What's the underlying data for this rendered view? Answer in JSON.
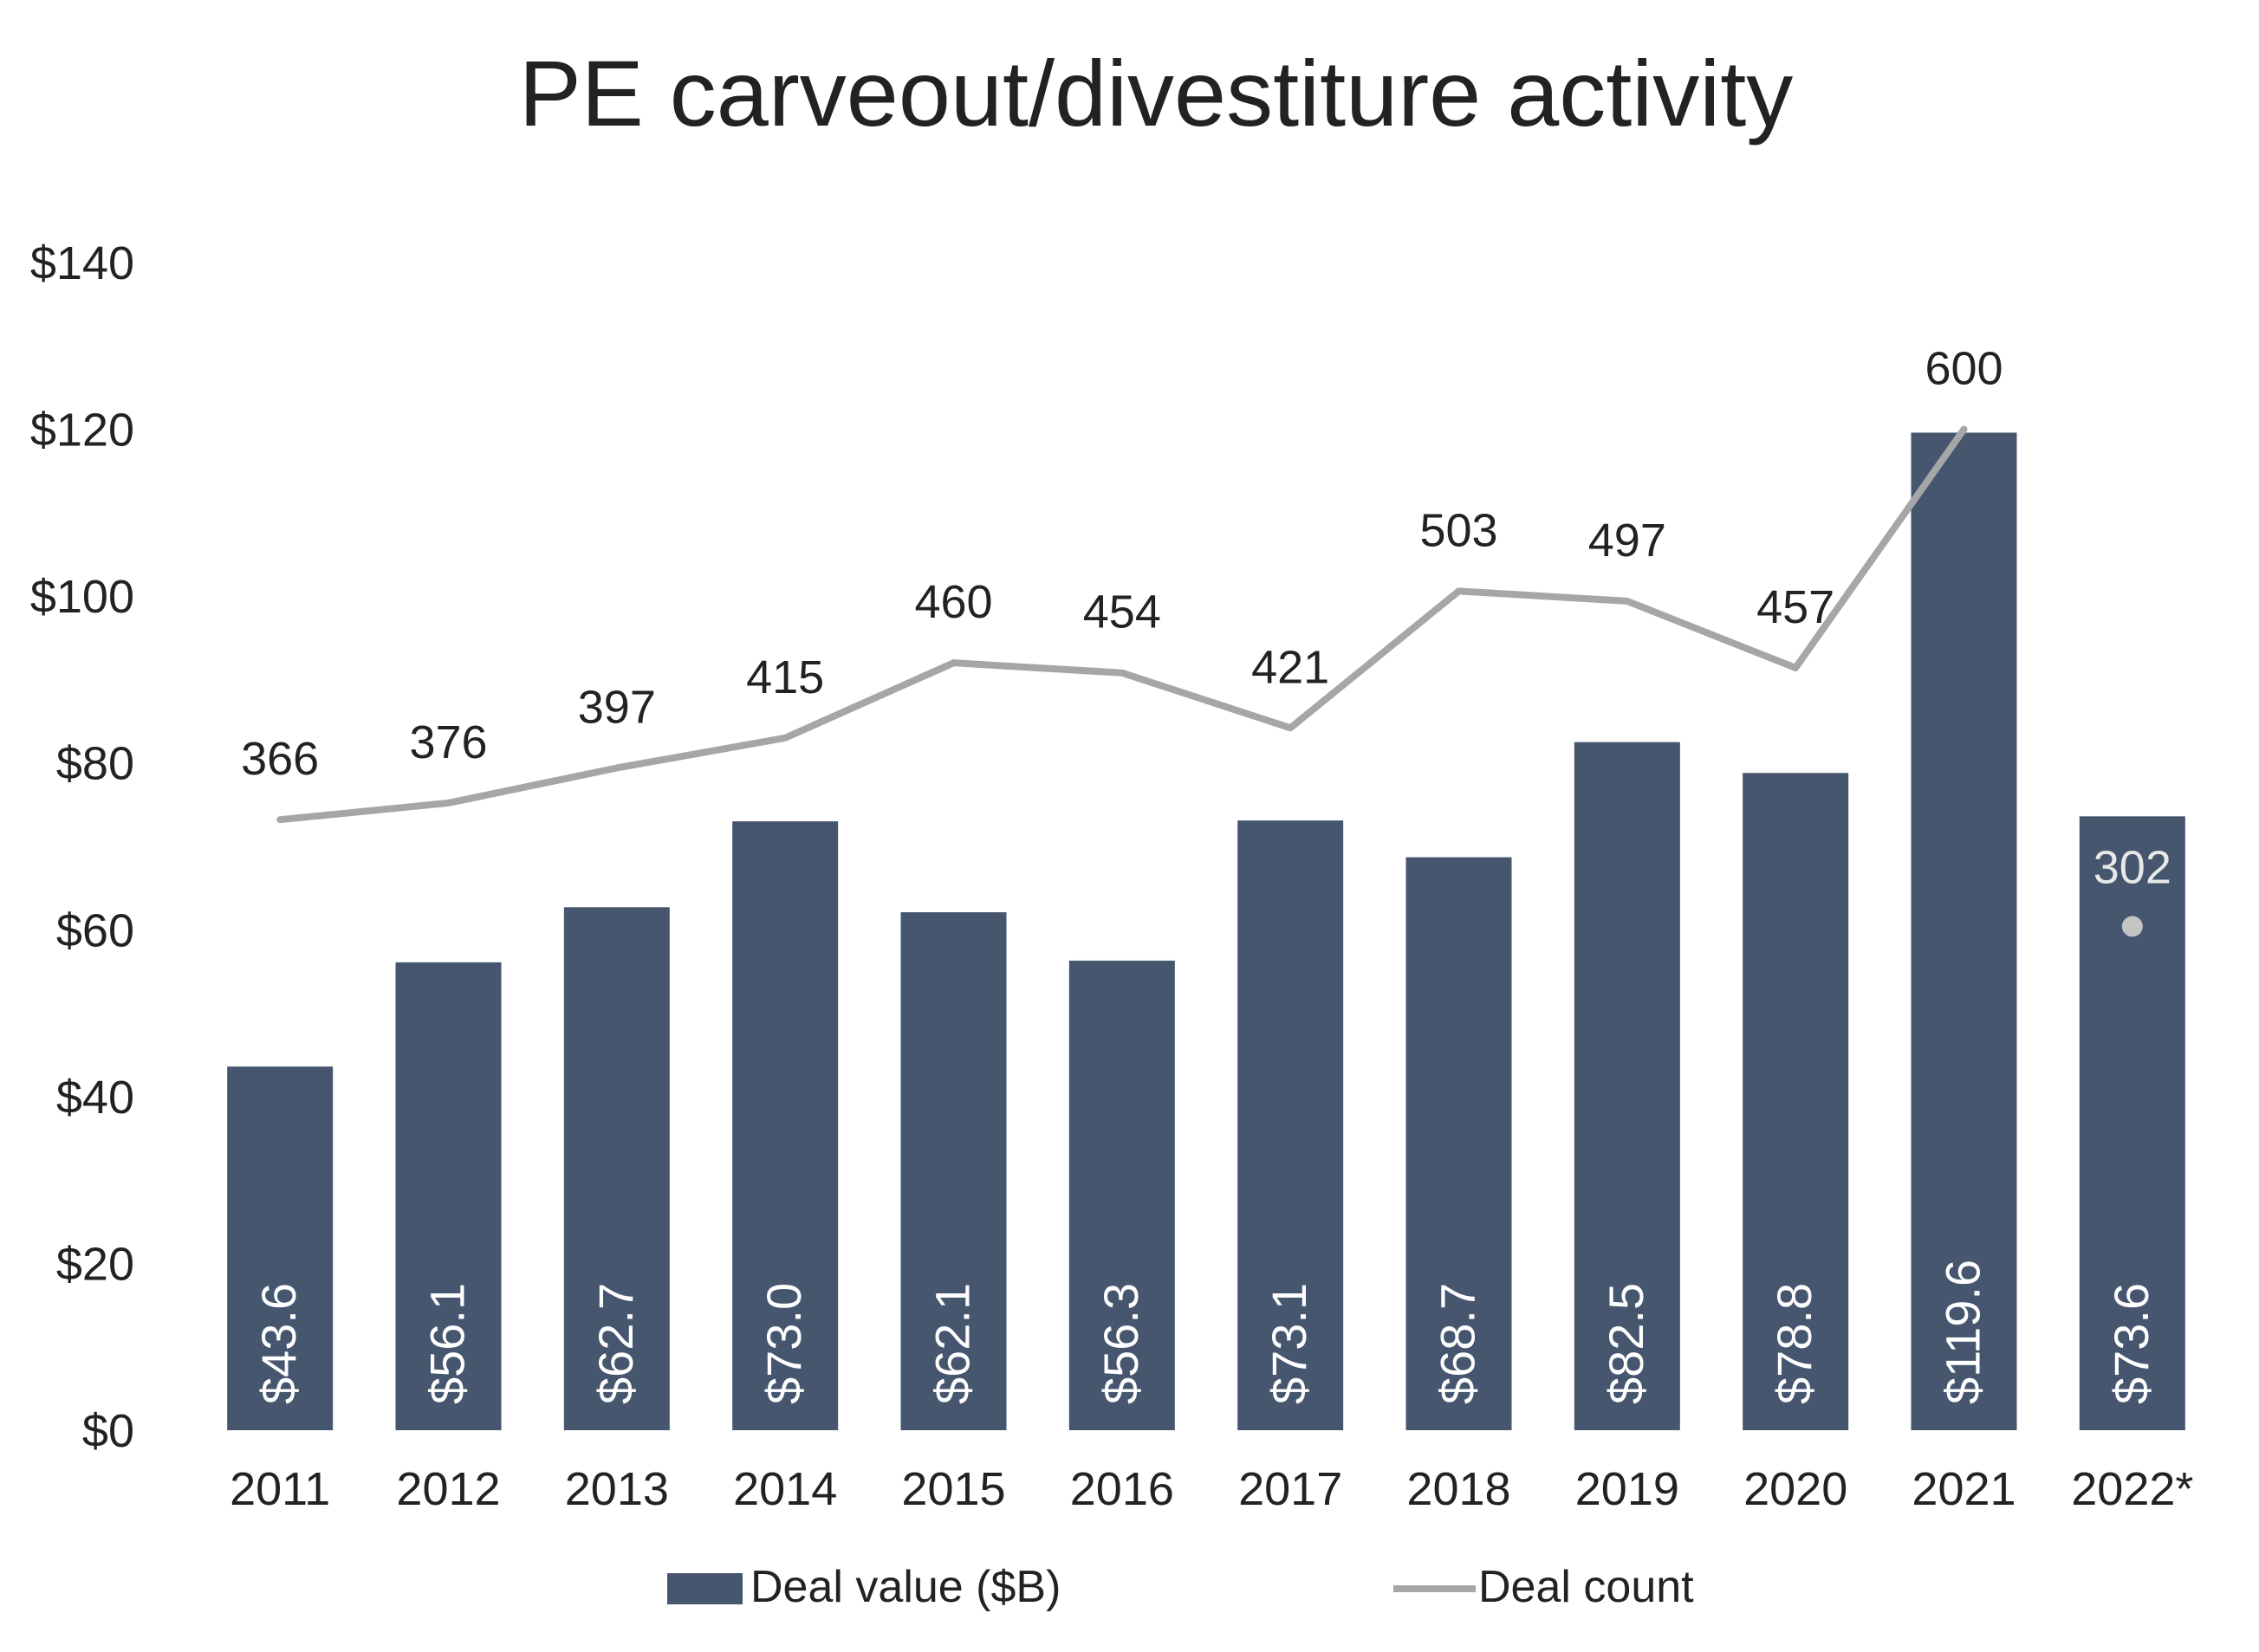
{
  "chart_data": {
    "type": "bar",
    "title": "PE carveout/divestiture activity",
    "categories": [
      "2011",
      "2012",
      "2013",
      "2014",
      "2015",
      "2016",
      "2017",
      "2018",
      "2019",
      "2020",
      "2021",
      "2022*"
    ],
    "series": [
      {
        "name": "Deal value ($B)",
        "kind": "bar",
        "axis": "left",
        "color": "#46566f",
        "values": [
          43.6,
          56.1,
          62.7,
          73.0,
          62.1,
          56.3,
          73.1,
          68.7,
          82.5,
          78.8,
          119.6,
          73.6
        ],
        "labels": [
          "$43.6",
          "$56.1",
          "$62.7",
          "$73.0",
          "$62.1",
          "$56.3",
          "$73.1",
          "$68.7",
          "$82.5",
          "$78.8",
          "$119.6",
          "$73.6"
        ]
      },
      {
        "name": "Deal count",
        "kind": "line",
        "axis": "right",
        "color": "#a6a6a6",
        "values": [
          366,
          376,
          397,
          415,
          460,
          454,
          421,
          503,
          497,
          457,
          600,
          302
        ],
        "labels": [
          "366",
          "376",
          "397",
          "415",
          "460",
          "454",
          "421",
          "503",
          "497",
          "457",
          "600",
          "302"
        ],
        "last_point_marker_only": true
      }
    ],
    "y_axis": {
      "ylim": [
        0,
        140
      ],
      "ticks": [
        0,
        20,
        40,
        60,
        80,
        100,
        120,
        140
      ],
      "tick_labels": [
        "$0",
        "$20",
        "$40",
        "$60",
        "$80",
        "$100",
        "$120",
        "$140"
      ]
    },
    "y2_axis": {
      "ylim": [
        0,
        700
      ],
      "visible": false
    },
    "xlabel": "",
    "ylabel": "",
    "grid": false,
    "legend": {
      "position": "bottom"
    }
  }
}
